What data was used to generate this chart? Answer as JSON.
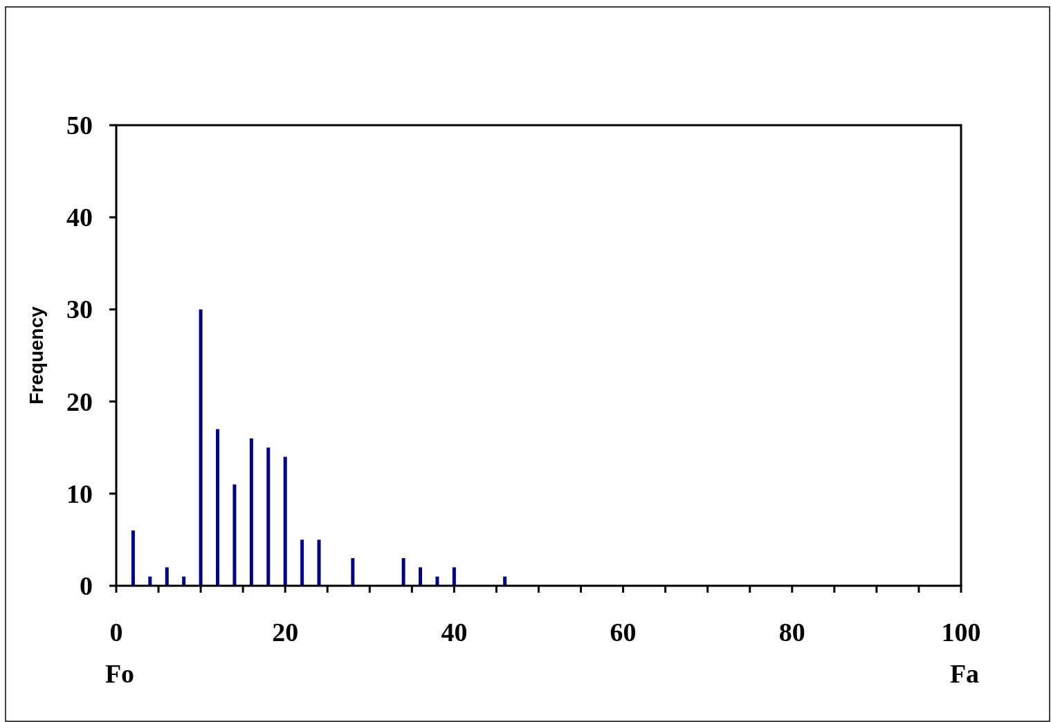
{
  "chart_data": {
    "type": "bar",
    "ylabel": "Frequency",
    "color": "#000080",
    "x": [
      2,
      4,
      6,
      8,
      10,
      12,
      14,
      16,
      18,
      20,
      22,
      24,
      28,
      34,
      36,
      38,
      40,
      46
    ],
    "values": [
      6,
      1,
      2,
      1,
      30,
      17,
      11,
      16,
      15,
      14,
      5,
      5,
      3,
      3,
      2,
      1,
      2,
      1
    ],
    "xlim": [
      0,
      100
    ],
    "xticks": [
      0,
      {
        "value": 5,
        "label": null
      },
      {
        "value": 10,
        "label": null
      },
      {
        "value": 15,
        "label": null
      },
      20,
      {
        "value": 25,
        "label": null
      },
      {
        "value": 30,
        "label": null
      },
      {
        "value": 35,
        "label": null
      },
      40,
      {
        "value": 45,
        "label": null
      },
      {
        "value": 50,
        "label": null
      },
      {
        "value": 55,
        "label": null
      },
      60,
      {
        "value": 65,
        "label": null
      },
      {
        "value": 70,
        "label": null
      },
      {
        "value": 75,
        "label": null
      },
      80,
      {
        "value": 85,
        "label": null
      },
      {
        "value": 90,
        "label": null
      },
      {
        "value": 95,
        "label": null
      },
      100
    ],
    "ylim": [
      0,
      50
    ],
    "yticks": [
      0,
      10,
      20,
      30,
      40,
      50
    ],
    "grid": false,
    "annotations": [
      "Fo",
      "Fa"
    ]
  }
}
